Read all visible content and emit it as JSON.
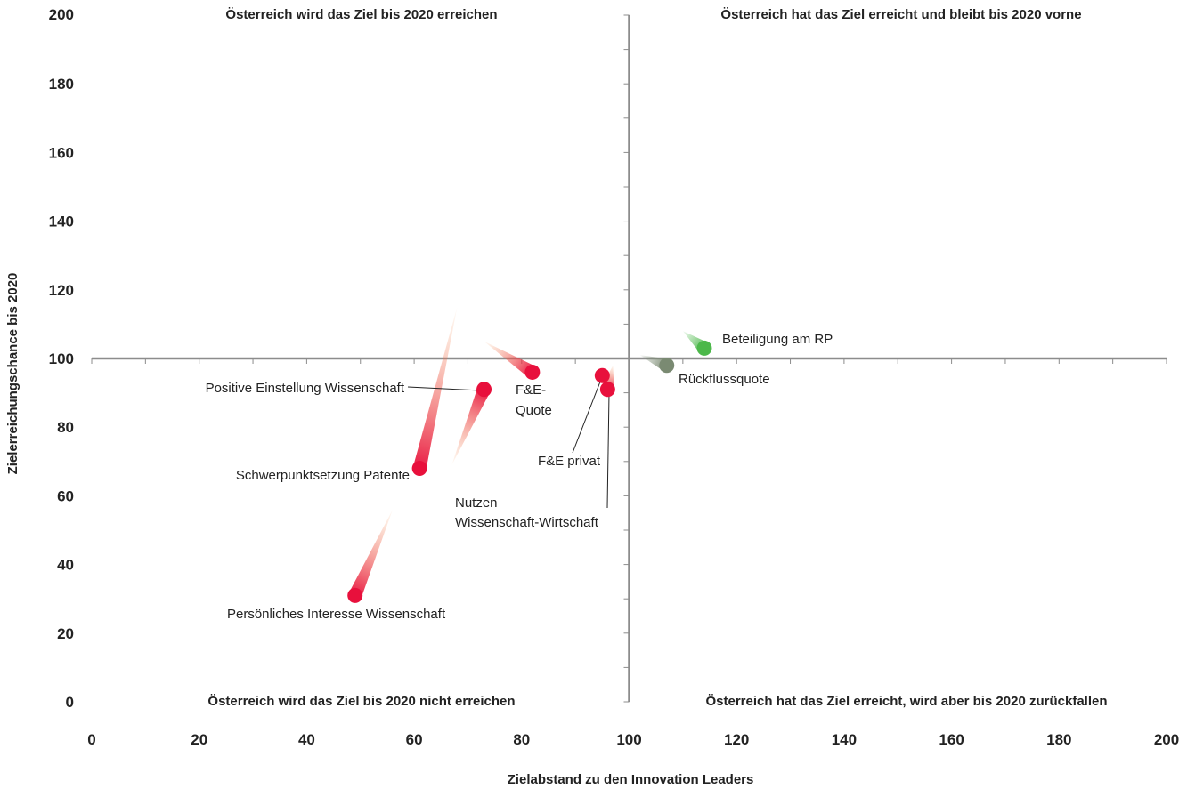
{
  "chart_data": {
    "type": "scatter",
    "xlabel": "Zielabstand zu den Innovation Leaders",
    "ylabel": "Zielerreichungschance bis 2020",
    "xlim": [
      0,
      200
    ],
    "ylim": [
      0,
      200
    ],
    "x_ticks": [
      "0",
      "20",
      "40",
      "60",
      "80",
      "100",
      "120",
      "140",
      "160",
      "180",
      "200"
    ],
    "y_ticks": [
      "0",
      "20",
      "40",
      "60",
      "80",
      "100",
      "120",
      "140",
      "160",
      "180",
      "200"
    ],
    "crosshair": {
      "x": 100,
      "y": 100
    },
    "grid": false,
    "quadrant_labels": {
      "top_left": "Österreich wird das Ziel bis 2020 erreichen",
      "top_right": "Österreich hat das Ziel erreicht und bleibt bis 2020 vorne",
      "bottom_left": "Österreich wird das Ziel bis 2020 nicht erreichen",
      "bottom_right": "Österreich hat das Ziel erreicht, wird aber bis 2020 zurückfallen"
    },
    "points": [
      {
        "label": "Beteiligung am RP",
        "x": 114,
        "y": 103,
        "color": "#4cb84a",
        "trail_to": [
          110,
          108
        ]
      },
      {
        "label": "Rückflussquote",
        "x": 107,
        "y": 98,
        "color": "#7a8a72",
        "trail_to": [
          102,
          101
        ]
      },
      {
        "label": "F&E-\nQuote",
        "x": 82,
        "y": 96,
        "color": "#e8103c",
        "trail_to": [
          73,
          105
        ]
      },
      {
        "label": "Positive Einstellung Wissenschaft",
        "x": 73,
        "y": 91,
        "color": "#e8103c",
        "trail_to": [
          67,
          69
        ]
      },
      {
        "label": "F&E privat",
        "x": 95,
        "y": 95,
        "color": "#e8103c",
        "trail_to": [
          96,
          96
        ]
      },
      {
        "label": "Nutzen\nWissenschaft-Wirtschaft",
        "x": 96,
        "y": 91,
        "color": "#e8103c",
        "trail_to": [
          97,
          98
        ]
      },
      {
        "label": "Schwerpunktsetzung Patente",
        "x": 61,
        "y": 68,
        "color": "#e8103c",
        "trail_to": [
          68,
          115
        ]
      },
      {
        "label": "Persönliches Interesse Wissenschaft",
        "x": 49,
        "y": 31,
        "color": "#e8103c",
        "trail_to": [
          56,
          56
        ]
      }
    ]
  }
}
